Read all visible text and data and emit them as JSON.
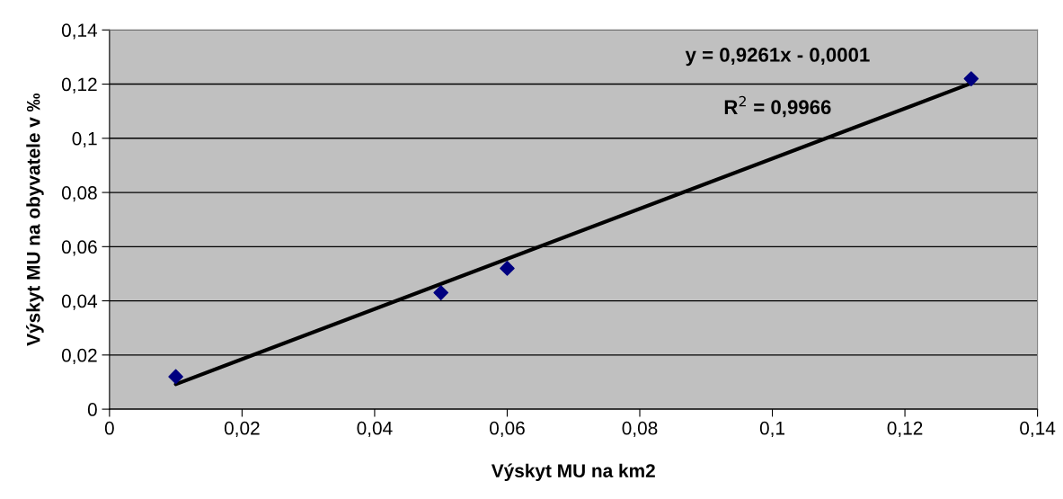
{
  "chart_data": {
    "type": "scatter",
    "xlabel": "Výskyt MU na km2",
    "ylabel": "Výskyt MU na obyvatele v ‰",
    "annotations": [
      "y = 0,9261x - 0,0001",
      "R$^{2}$ = 0,9966"
    ],
    "grid": "y",
    "legend": false,
    "marker": "diamond",
    "xlim": [
      0,
      0.14
    ],
    "ylim": [
      0,
      0.14
    ],
    "xticks": [
      0,
      {
        "value": 0.02,
        "label": "0,02"
      },
      {
        "value": 0.04,
        "label": "0,04"
      },
      {
        "value": 0.06,
        "label": "0,06"
      },
      {
        "value": 0.08,
        "label": "0,08"
      },
      {
        "value": 0.1,
        "label": "0,1"
      },
      {
        "value": 0.12,
        "label": "0,12"
      },
      {
        "value": 0.14,
        "label": "0,14"
      }
    ],
    "yticks": [
      0,
      {
        "value": 0.02,
        "label": "0,02"
      },
      {
        "value": 0.04,
        "label": "0,04"
      },
      {
        "value": 0.06,
        "label": "0,06"
      },
      {
        "value": 0.08,
        "label": "0,08"
      },
      {
        "value": 0.1,
        "label": "0,1"
      },
      {
        "value": 0.12,
        "label": "0,12"
      },
      {
        "value": 0.14,
        "label": "0,14"
      }
    ],
    "series": [
      {
        "color": "#000080",
        "x": [
          0.01,
          0.05,
          0.06,
          0.13
        ],
        "values": [
          0.012,
          0.043,
          0.052,
          0.122
        ]
      },
      {
        "type": "line",
        "color": "#000000",
        "marker": "none",
        "line_style": "solid",
        "x": [
          0.01,
          0.13
        ],
        "values": [
          0.0092,
          0.1203
        ]
      }
    ]
  }
}
